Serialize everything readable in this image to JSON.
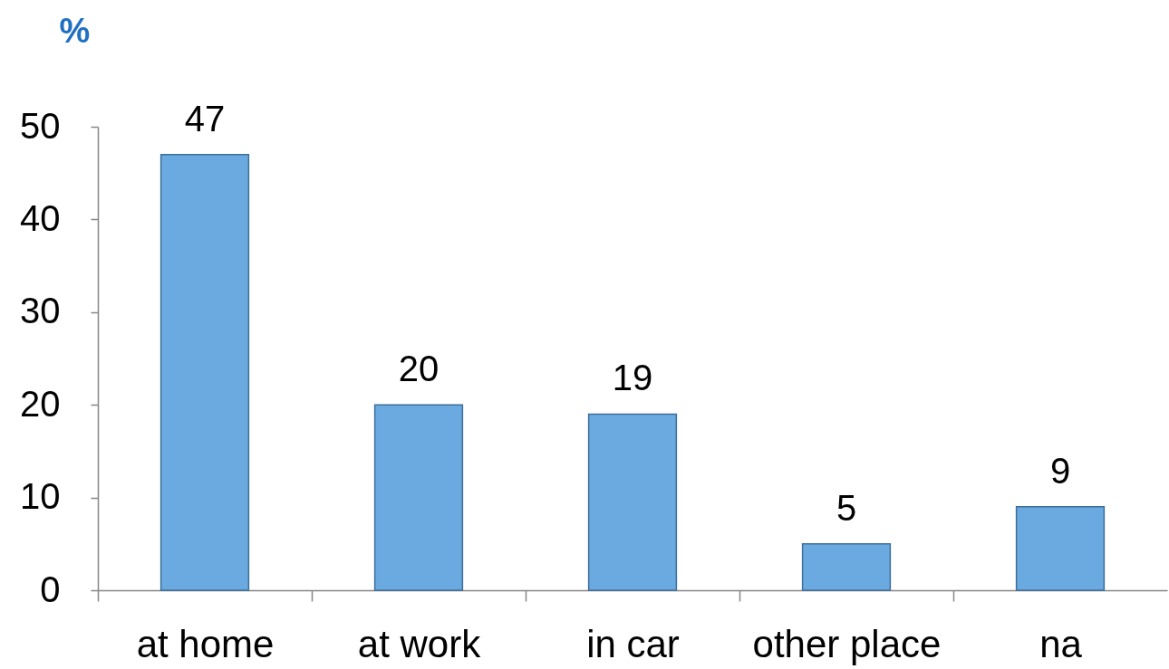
{
  "chart_data": {
    "type": "bar",
    "ylabel": "%",
    "categories": [
      "at home",
      "at work",
      "in car",
      "other place",
      "na"
    ],
    "values": [
      47,
      20,
      19,
      5,
      9
    ],
    "color": "#6aaae0",
    "ylim": [
      0,
      50
    ],
    "yticks": [
      0,
      10,
      20,
      30,
      40,
      50
    ],
    "data_labels": true
  }
}
